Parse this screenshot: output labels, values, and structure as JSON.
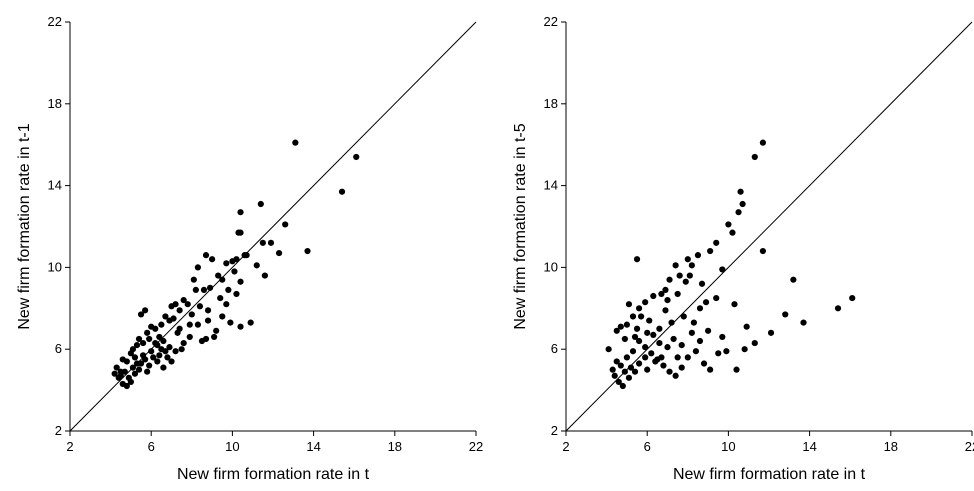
{
  "chart_data": [
    {
      "type": "scatter",
      "title": "",
      "xlabel": "New firm formation rate in t",
      "ylabel": "New firm formation rate in t-1",
      "xlim": [
        2,
        22
      ],
      "ylim": [
        2,
        22
      ],
      "xticks": [
        "2",
        "6",
        "10",
        "14",
        "18",
        "22"
      ],
      "yticks": [
        "2",
        "6",
        "10",
        "14",
        "18",
        "22"
      ],
      "reference_line": "45-degree line y = x",
      "grid": false,
      "legend": "none",
      "marker_color": "#000000",
      "points": [
        [
          13.1,
          16.1
        ],
        [
          16.1,
          15.4
        ],
        [
          15.4,
          13.7
        ],
        [
          13.7,
          10.8
        ],
        [
          12.6,
          12.1
        ],
        [
          11.9,
          11.2
        ],
        [
          11.5,
          11.2
        ],
        [
          11.4,
          13.1
        ],
        [
          11.6,
          9.6
        ],
        [
          11.2,
          10.1
        ],
        [
          10.4,
          12.7
        ],
        [
          10.4,
          11.7
        ],
        [
          10.3,
          11.7
        ],
        [
          10.6,
          10.6
        ],
        [
          10.2,
          10.4
        ],
        [
          10.0,
          10.3
        ],
        [
          10.1,
          9.8
        ],
        [
          10.4,
          9.3
        ],
        [
          10.2,
          8.7
        ],
        [
          9.7,
          10.2
        ],
        [
          9.5,
          9.4
        ],
        [
          9.3,
          9.6
        ],
        [
          9.0,
          10.4
        ],
        [
          8.9,
          9.0
        ],
        [
          8.7,
          10.6
        ],
        [
          8.6,
          8.9
        ],
        [
          8.3,
          10.0
        ],
        [
          8.1,
          9.4
        ],
        [
          8.4,
          8.1
        ],
        [
          8.2,
          8.9
        ],
        [
          9.8,
          8.9
        ],
        [
          9.7,
          8.2
        ],
        [
          9.5,
          7.6
        ],
        [
          9.9,
          7.3
        ],
        [
          10.4,
          7.1
        ],
        [
          10.9,
          7.3
        ],
        [
          9.2,
          6.9
        ],
        [
          9.1,
          6.6
        ],
        [
          8.7,
          6.5
        ],
        [
          8.5,
          6.4
        ],
        [
          8.8,
          7.4
        ],
        [
          8.0,
          7.7
        ],
        [
          7.8,
          8.2
        ],
        [
          7.6,
          8.4
        ],
        [
          7.4,
          7.9
        ],
        [
          7.2,
          8.2
        ],
        [
          7.0,
          8.1
        ],
        [
          7.1,
          7.5
        ],
        [
          6.9,
          7.4
        ],
        [
          6.7,
          7.6
        ],
        [
          7.6,
          6.3
        ],
        [
          7.9,
          6.6
        ],
        [
          7.9,
          7.2
        ],
        [
          7.5,
          6.0
        ],
        [
          7.3,
          6.8
        ],
        [
          6.9,
          6.1
        ],
        [
          6.5,
          6.0
        ],
        [
          6.4,
          6.6
        ],
        [
          6.2,
          7.0
        ],
        [
          6.5,
          7.2
        ],
        [
          6.0,
          7.1
        ],
        [
          5.7,
          7.9
        ],
        [
          5.5,
          7.7
        ],
        [
          5.9,
          6.5
        ],
        [
          5.8,
          6.8
        ],
        [
          5.6,
          6.3
        ],
        [
          5.4,
          6.5
        ],
        [
          5.3,
          6.2
        ],
        [
          5.1,
          6.0
        ],
        [
          5.2,
          5.6
        ],
        [
          5.0,
          5.8
        ],
        [
          4.8,
          5.4
        ],
        [
          4.6,
          5.5
        ],
        [
          4.5,
          4.9
        ],
        [
          4.3,
          5.1
        ],
        [
          4.2,
          4.8
        ],
        [
          4.4,
          4.6
        ],
        [
          4.6,
          4.3
        ],
        [
          4.8,
          4.2
        ],
        [
          4.9,
          4.6
        ],
        [
          5.0,
          4.4
        ],
        [
          5.2,
          4.8
        ],
        [
          5.4,
          5.0
        ],
        [
          5.5,
          5.3
        ],
        [
          5.7,
          5.5
        ],
        [
          5.9,
          5.2
        ],
        [
          6.1,
          5.6
        ],
        [
          6.3,
          5.4
        ],
        [
          6.0,
          5.9
        ],
        [
          6.2,
          6.3
        ],
        [
          6.4,
          5.7
        ],
        [
          6.6,
          5.1
        ],
        [
          6.8,
          5.6
        ],
        [
          7.0,
          5.4
        ],
        [
          7.2,
          5.9
        ],
        [
          6.7,
          5.9
        ],
        [
          6.3,
          6.2
        ],
        [
          5.6,
          5.7
        ],
        [
          5.3,
          5.3
        ],
        [
          5.1,
          5.1
        ],
        [
          4.7,
          4.9
        ],
        [
          4.5,
          4.7
        ],
        [
          5.8,
          4.9
        ],
        [
          6.6,
          6.4
        ],
        [
          7.4,
          7.0
        ],
        [
          8.3,
          7.2
        ],
        [
          8.8,
          7.9
        ],
        [
          9.4,
          8.5
        ],
        [
          12.3,
          10.7
        ],
        [
          10.7,
          10.6
        ]
      ]
    },
    {
      "type": "scatter",
      "title": "",
      "xlabel": "New firm formation rate in t",
      "ylabel": "New firm formation rate in t-5",
      "xlim": [
        2,
        22
      ],
      "ylim": [
        2,
        22
      ],
      "xticks": [
        "2",
        "6",
        "10",
        "14",
        "18",
        "22"
      ],
      "yticks": [
        "2",
        "6",
        "10",
        "14",
        "18",
        "22"
      ],
      "reference_line": "45-degree line y = x",
      "grid": false,
      "legend": "none",
      "marker_color": "#000000",
      "points": [
        [
          11.7,
          16.1
        ],
        [
          11.3,
          15.4
        ],
        [
          10.7,
          13.1
        ],
        [
          10.5,
          12.7
        ],
        [
          10.6,
          13.7
        ],
        [
          10.0,
          12.1
        ],
        [
          10.2,
          11.7
        ],
        [
          9.4,
          11.2
        ],
        [
          9.1,
          10.8
        ],
        [
          8.5,
          10.6
        ],
        [
          8.0,
          10.4
        ],
        [
          7.4,
          10.1
        ],
        [
          8.2,
          10.1
        ],
        [
          7.6,
          9.6
        ],
        [
          7.9,
          9.3
        ],
        [
          7.1,
          9.4
        ],
        [
          6.9,
          8.9
        ],
        [
          6.7,
          8.7
        ],
        [
          6.3,
          8.6
        ],
        [
          5.9,
          8.3
        ],
        [
          5.6,
          8.0
        ],
        [
          5.1,
          8.2
        ],
        [
          5.7,
          7.6
        ],
        [
          5.3,
          7.6
        ],
        [
          5.0,
          7.2
        ],
        [
          4.7,
          7.1
        ],
        [
          4.5,
          6.9
        ],
        [
          4.9,
          6.5
        ],
        [
          5.4,
          6.6
        ],
        [
          6.0,
          6.8
        ],
        [
          6.6,
          7.0
        ],
        [
          7.2,
          7.3
        ],
        [
          7.8,
          7.6
        ],
        [
          8.6,
          8.0
        ],
        [
          9.4,
          8.5
        ],
        [
          10.3,
          8.2
        ],
        [
          11.7,
          10.8
        ],
        [
          13.2,
          9.4
        ],
        [
          12.8,
          7.7
        ],
        [
          12.1,
          6.8
        ],
        [
          13.7,
          7.3
        ],
        [
          15.4,
          8.0
        ],
        [
          16.1,
          8.5
        ],
        [
          5.5,
          10.4
        ],
        [
          4.1,
          6.0
        ],
        [
          4.3,
          5.0
        ],
        [
          4.4,
          4.7
        ],
        [
          4.6,
          4.4
        ],
        [
          4.8,
          4.2
        ],
        [
          5.1,
          4.6
        ],
        [
          5.4,
          4.9
        ],
        [
          5.6,
          5.3
        ],
        [
          5.9,
          5.6
        ],
        [
          6.2,
          5.8
        ],
        [
          6.5,
          5.5
        ],
        [
          6.8,
          5.2
        ],
        [
          7.1,
          4.9
        ],
        [
          7.4,
          4.7
        ],
        [
          7.7,
          5.1
        ],
        [
          8.0,
          5.6
        ],
        [
          8.4,
          5.9
        ],
        [
          8.8,
          5.3
        ],
        [
          9.1,
          5.0
        ],
        [
          9.5,
          5.8
        ],
        [
          9.9,
          5.9
        ],
        [
          10.4,
          5.0
        ],
        [
          10.8,
          6.0
        ],
        [
          11.3,
          6.3
        ],
        [
          10.9,
          7.1
        ],
        [
          9.7,
          6.6
        ],
        [
          9.0,
          6.9
        ],
        [
          8.6,
          6.4
        ],
        [
          8.2,
          6.8
        ],
        [
          7.7,
          6.2
        ],
        [
          7.3,
          6.5
        ],
        [
          7.0,
          6.1
        ],
        [
          6.6,
          6.3
        ],
        [
          6.3,
          6.7
        ],
        [
          5.9,
          6.1
        ],
        [
          5.6,
          6.4
        ],
        [
          5.3,
          5.9
        ],
        [
          5.0,
          5.6
        ],
        [
          4.7,
          5.2
        ],
        [
          4.5,
          5.4
        ],
        [
          4.9,
          4.9
        ],
        [
          5.2,
          5.1
        ],
        [
          6.0,
          5.0
        ],
        [
          6.7,
          5.6
        ],
        [
          7.5,
          5.6
        ],
        [
          8.3,
          7.3
        ],
        [
          8.9,
          8.3
        ],
        [
          7.5,
          8.7
        ],
        [
          6.9,
          7.9
        ],
        [
          6.1,
          7.4
        ],
        [
          5.5,
          7.0
        ],
        [
          9.7,
          9.9
        ],
        [
          8.7,
          9.2
        ],
        [
          8.1,
          9.6
        ],
        [
          7.0,
          8.4
        ],
        [
          6.4,
          5.4
        ]
      ]
    }
  ]
}
